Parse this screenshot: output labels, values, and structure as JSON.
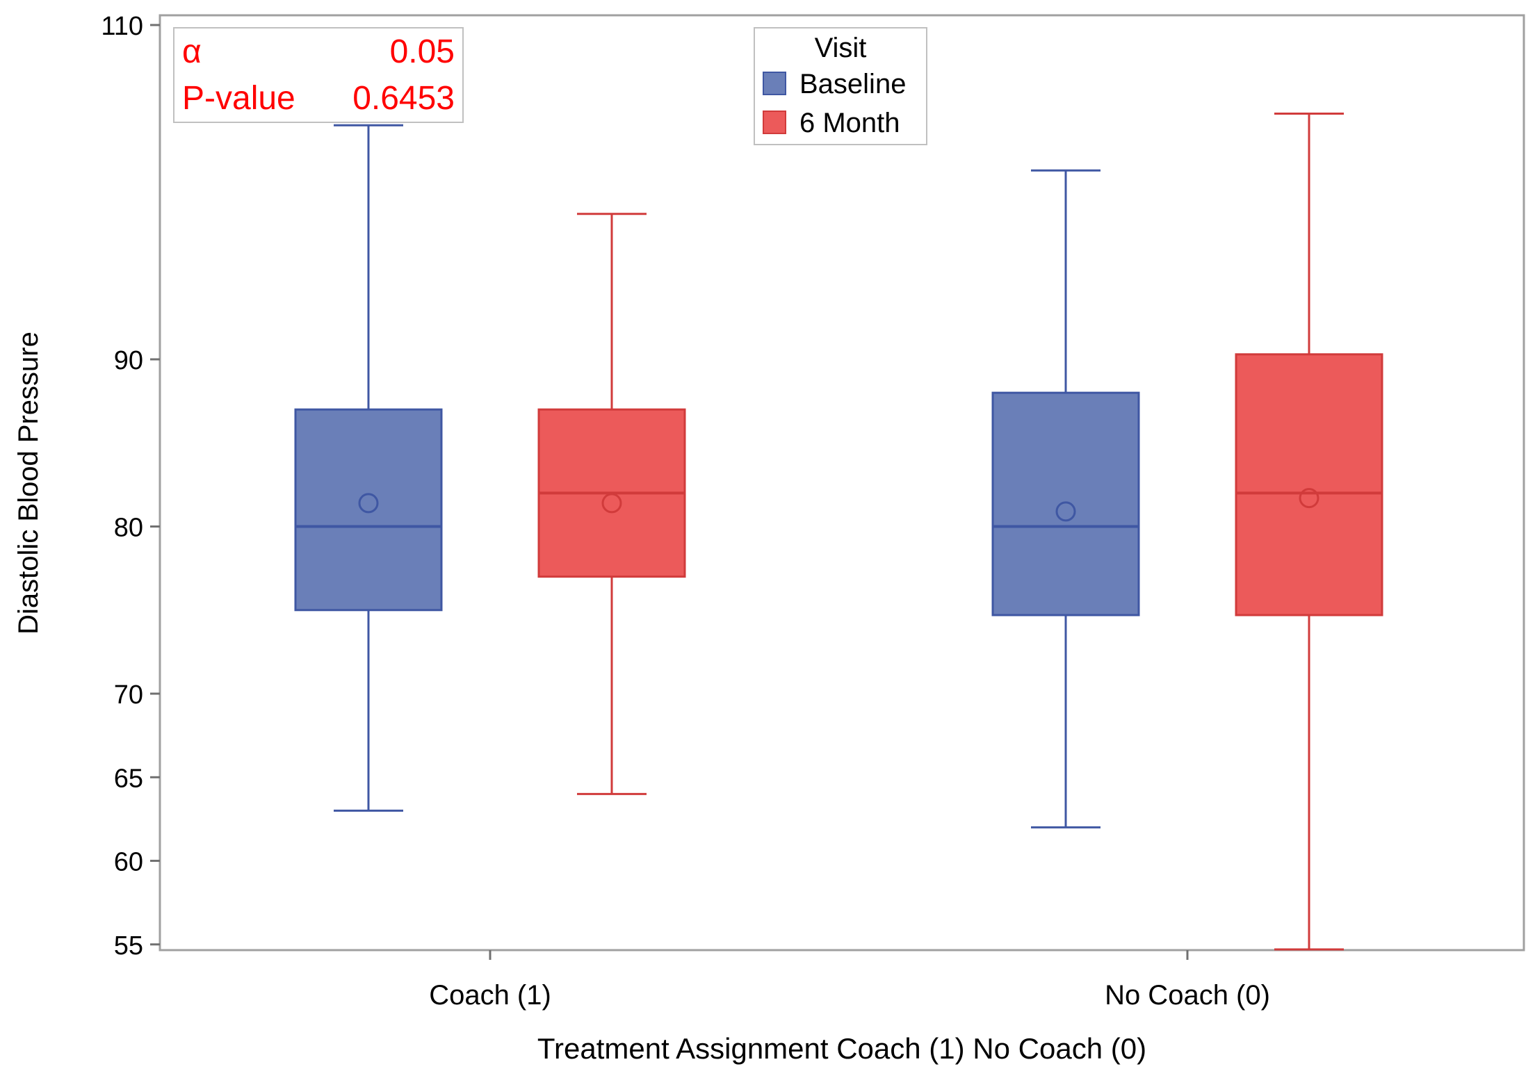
{
  "chart_data": {
    "type": "box",
    "xlabel": "Treatment Assignment Coach (1) No Coach (0)",
    "ylabel": "Diastolic Blood Pressure",
    "ylim": [
      54.7,
      110.0
    ],
    "yticks": [
      55,
      60,
      65,
      70,
      80,
      90,
      110
    ],
    "categories": [
      "Coach (1)",
      "No Coach (0)"
    ],
    "legend": {
      "title": "Visit",
      "position": "top-center",
      "entries": [
        "Baseline",
        "6 Month"
      ]
    },
    "stats": {
      "alpha_label": "α",
      "alpha_value": "0.05",
      "pvalue_label": "P-value",
      "pvalue_value": "0.6453"
    },
    "colors": {
      "Baseline_fill": "#6a7fb8",
      "Baseline_line": "#3f57a3",
      "6 Month_fill": "#ec5a5a",
      "6 Month_line": "#d13b3b",
      "stats_text": "#ff0000",
      "frame": "#a0a0a0"
    },
    "series": [
      {
        "name": "Baseline",
        "boxes": [
          {
            "category": "Coach (1)",
            "min": 63,
            "q1": 75,
            "median": 80,
            "q3": 87,
            "max": 104,
            "mean": 81.4
          },
          {
            "category": "No Coach (0)",
            "min": 62,
            "q1": 74.7,
            "median": 80,
            "q3": 88,
            "max": 101.3,
            "mean": 80.9
          }
        ]
      },
      {
        "name": "6 Month",
        "boxes": [
          {
            "category": "Coach (1)",
            "min": 64,
            "q1": 77,
            "median": 82,
            "q3": 87,
            "max": 98.7,
            "mean": 81.4
          },
          {
            "category": "No Coach (0)",
            "min": 54.7,
            "q1": 74.7,
            "median": 82,
            "q3": 90.3,
            "max": 104.7,
            "mean": 81.7
          }
        ]
      }
    ]
  }
}
